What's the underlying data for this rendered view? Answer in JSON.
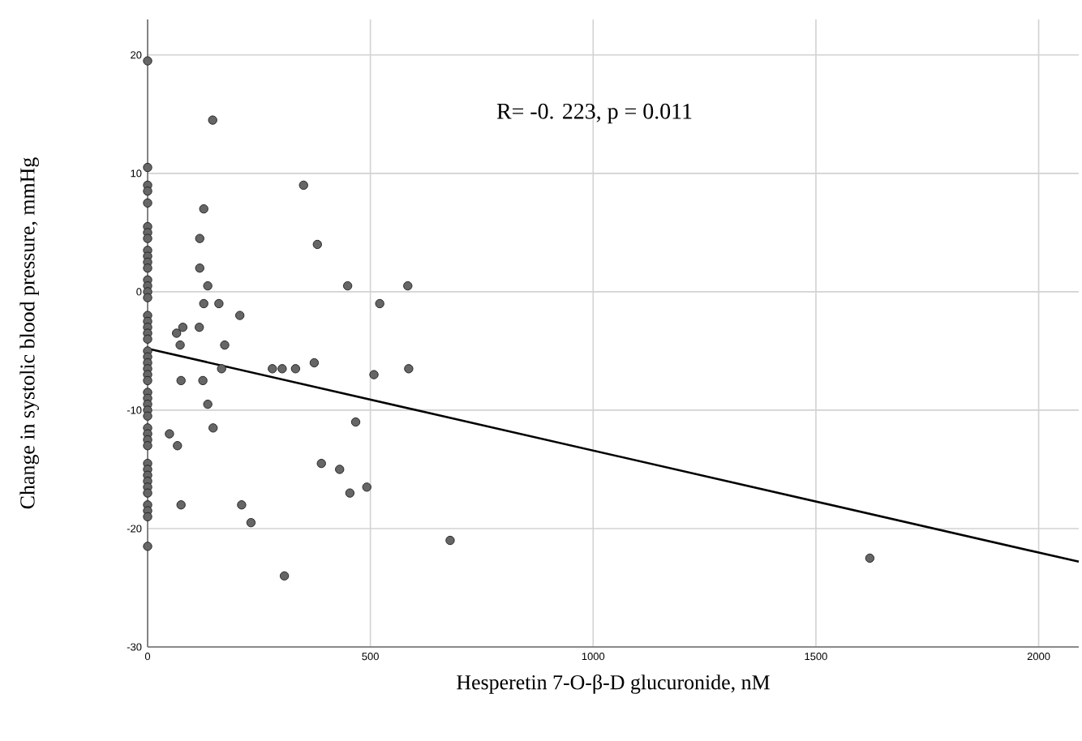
{
  "chart_data": {
    "type": "scatter",
    "xlabel": "Hesperetin 7-O-β-D glucuronide, nM",
    "ylabel": "Change in systolic blood pressure, mmHg",
    "annotations": [
      "R= -0. 223, p = 0.011"
    ],
    "xlim": [
      0,
      2090
    ],
    "ylim": [
      -30,
      23
    ],
    "xticks": [
      0,
      500,
      1000,
      1500,
      2000
    ],
    "yticks": [
      -30,
      -20,
      -10,
      0,
      10,
      20
    ],
    "grid": true,
    "series": [
      {
        "color": "#666666",
        "marker": "circle",
        "x": [
          0,
          0,
          0,
          0,
          0,
          0,
          0,
          0,
          0,
          0,
          0,
          0,
          0,
          0,
          0,
          0,
          0,
          0,
          0,
          0,
          0,
          0,
          0,
          0,
          0,
          0,
          0,
          0,
          0,
          0,
          0,
          0,
          0,
          0,
          0,
          0,
          0,
          0,
          0,
          0,
          0,
          0,
          0,
          0,
          0,
          0,
          146,
          350,
          126,
          117,
          381,
          117,
          135,
          449,
          584,
          126,
          160,
          521,
          207,
          65,
          79,
          116,
          73,
          173,
          166,
          280,
          302,
          332,
          374,
          586,
          75,
          124,
          508,
          135,
          49,
          67,
          147,
          467,
          75,
          211,
          232,
          390,
          431,
          454,
          492,
          307,
          679,
          1621
        ],
        "values": [
          19.5,
          10.5,
          9,
          8.5,
          7.5,
          5.5,
          5,
          4.5,
          3.5,
          3,
          2.5,
          2,
          1,
          0.5,
          0,
          -0.5,
          -2,
          -2.5,
          -3,
          -3.5,
          -4,
          -5,
          -5.5,
          -6,
          -6.5,
          -7,
          -7.5,
          -8.5,
          -9,
          -9.5,
          -10,
          -10.5,
          -11.5,
          -12,
          -12.5,
          -13,
          -14.5,
          -15,
          -15.5,
          -16,
          -16.5,
          -17,
          -18,
          -18.5,
          -19,
          -21.5,
          14.5,
          9,
          7,
          4.5,
          4,
          2,
          0.5,
          0.5,
          0.5,
          -1,
          -1,
          -1,
          -2,
          -3.5,
          -3,
          -3,
          -4.5,
          -4.5,
          -6.5,
          -6.5,
          -6.5,
          -6.5,
          -6,
          -6.5,
          -7.5,
          -7.5,
          -7,
          -9.5,
          -12,
          -13,
          -11.5,
          -11,
          -18,
          -18,
          -19.5,
          -14.5,
          -15,
          -17,
          -16.5,
          -24,
          -21,
          -22.5
        ]
      },
      {
        "type": "line",
        "color": "#000000",
        "marker": "none",
        "line_style": "solid",
        "x": [
          0,
          2090
        ],
        "values": [
          -4.8,
          -22.8
        ]
      }
    ]
  }
}
